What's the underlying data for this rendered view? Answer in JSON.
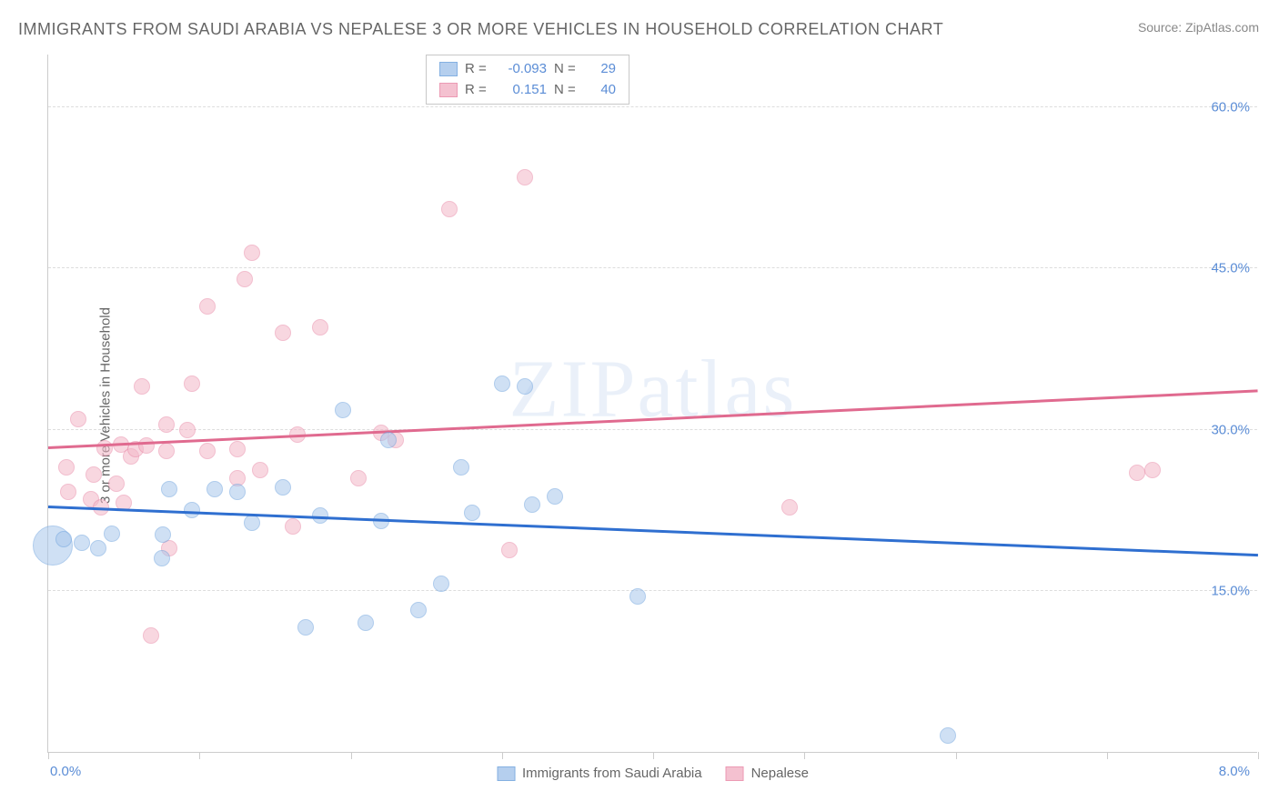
{
  "title": "IMMIGRANTS FROM SAUDI ARABIA VS NEPALESE 3 OR MORE VEHICLES IN HOUSEHOLD CORRELATION CHART",
  "source": "Source: ZipAtlas.com",
  "watermark": "ZIPatlas",
  "ylabel": "3 or more Vehicles in Household",
  "chart": {
    "type": "scatter",
    "xlim": [
      0.0,
      8.0
    ],
    "ylim": [
      0.0,
      65.0
    ],
    "yticks": [
      15.0,
      30.0,
      45.0,
      60.0
    ],
    "ytick_labels": [
      "15.0%",
      "30.0%",
      "45.0%",
      "60.0%"
    ],
    "xticks_displayed": [
      0.0,
      8.0
    ],
    "xtick_labels": [
      "0.0%",
      "8.0%"
    ],
    "xtick_marks": [
      0.0,
      1.0,
      2.0,
      3.0,
      4.0,
      5.0,
      6.0,
      7.0,
      8.0
    ],
    "background_color": "#ffffff",
    "grid_color": "#dddddd",
    "axis_color": "#cccccc",
    "tick_label_color": "#5b8dd6",
    "title_color": "#666666",
    "title_fontsize": 18,
    "label_fontsize": 15
  },
  "series": {
    "saudi": {
      "label": "Immigrants from Saudi Arabia",
      "fill_color": "#a9c7ec",
      "stroke_color": "#6fa3de",
      "line_color": "#2f6fd0",
      "fill_opacity": 0.55,
      "R": "-0.093",
      "N": "29",
      "marker_radius": 9,
      "trend": {
        "x1": 0.0,
        "y1": 22.7,
        "x2": 8.0,
        "y2": 18.2
      },
      "points": [
        {
          "x": 0.03,
          "y": 19.2,
          "r": 22
        },
        {
          "x": 0.1,
          "y": 19.8,
          "r": 9
        },
        {
          "x": 0.22,
          "y": 19.5,
          "r": 9
        },
        {
          "x": 0.33,
          "y": 19.0,
          "r": 9
        },
        {
          "x": 0.42,
          "y": 20.3,
          "r": 9
        },
        {
          "x": 0.75,
          "y": 18.0,
          "r": 9
        },
        {
          "x": 0.76,
          "y": 20.2,
          "r": 9
        },
        {
          "x": 0.8,
          "y": 24.5,
          "r": 9
        },
        {
          "x": 0.95,
          "y": 22.5,
          "r": 9
        },
        {
          "x": 1.1,
          "y": 24.5,
          "r": 9
        },
        {
          "x": 1.25,
          "y": 24.2,
          "r": 9
        },
        {
          "x": 1.35,
          "y": 21.3,
          "r": 9
        },
        {
          "x": 1.55,
          "y": 24.6,
          "r": 9
        },
        {
          "x": 1.7,
          "y": 11.6,
          "r": 9
        },
        {
          "x": 1.8,
          "y": 22.0,
          "r": 9
        },
        {
          "x": 1.95,
          "y": 31.8,
          "r": 9
        },
        {
          "x": 2.1,
          "y": 12.0,
          "r": 9
        },
        {
          "x": 2.2,
          "y": 21.5,
          "r": 9
        },
        {
          "x": 2.25,
          "y": 29.0,
          "r": 9
        },
        {
          "x": 2.45,
          "y": 13.2,
          "r": 9
        },
        {
          "x": 2.6,
          "y": 15.7,
          "r": 9
        },
        {
          "x": 2.73,
          "y": 26.5,
          "r": 9
        },
        {
          "x": 2.8,
          "y": 22.3,
          "r": 9
        },
        {
          "x": 3.0,
          "y": 34.3,
          "r": 9
        },
        {
          "x": 3.2,
          "y": 23.0,
          "r": 9
        },
        {
          "x": 3.35,
          "y": 23.8,
          "r": 9
        },
        {
          "x": 3.9,
          "y": 14.5,
          "r": 9
        },
        {
          "x": 5.95,
          "y": 1.5,
          "r": 9
        },
        {
          "x": 3.15,
          "y": 34.0,
          "r": 9
        }
      ]
    },
    "nepalese": {
      "label": "Nepalese",
      "fill_color": "#f3b7c8",
      "stroke_color": "#e989a7",
      "line_color": "#e06a8f",
      "fill_opacity": 0.55,
      "R": "0.151",
      "N": "40",
      "marker_radius": 9,
      "trend": {
        "x1": 0.0,
        "y1": 28.2,
        "x2": 8.0,
        "y2": 33.5
      },
      "points": [
        {
          "x": 0.12,
          "y": 26.5,
          "r": 9
        },
        {
          "x": 0.13,
          "y": 24.2,
          "r": 9
        },
        {
          "x": 0.2,
          "y": 31.0,
          "r": 9
        },
        {
          "x": 0.28,
          "y": 23.5,
          "r": 9
        },
        {
          "x": 0.3,
          "y": 25.8,
          "r": 9
        },
        {
          "x": 0.35,
          "y": 22.8,
          "r": 9
        },
        {
          "x": 0.37,
          "y": 28.3,
          "r": 9
        },
        {
          "x": 0.45,
          "y": 25.0,
          "r": 9
        },
        {
          "x": 0.48,
          "y": 28.6,
          "r": 9
        },
        {
          "x": 0.5,
          "y": 23.2,
          "r": 9
        },
        {
          "x": 0.55,
          "y": 27.5,
          "r": 9
        },
        {
          "x": 0.58,
          "y": 28.2,
          "r": 9
        },
        {
          "x": 0.62,
          "y": 34.0,
          "r": 9
        },
        {
          "x": 0.65,
          "y": 28.5,
          "r": 9
        },
        {
          "x": 0.68,
          "y": 10.8,
          "r": 9
        },
        {
          "x": 0.78,
          "y": 28.0,
          "r": 9
        },
        {
          "x": 0.78,
          "y": 30.5,
          "r": 9
        },
        {
          "x": 0.8,
          "y": 19.0,
          "r": 9
        },
        {
          "x": 0.92,
          "y": 30.0,
          "r": 9
        },
        {
          "x": 0.95,
          "y": 34.3,
          "r": 9
        },
        {
          "x": 1.05,
          "y": 28.0,
          "r": 9
        },
        {
          "x": 1.05,
          "y": 41.5,
          "r": 9
        },
        {
          "x": 1.25,
          "y": 25.5,
          "r": 9
        },
        {
          "x": 1.25,
          "y": 28.2,
          "r": 9
        },
        {
          "x": 1.3,
          "y": 44.0,
          "r": 9
        },
        {
          "x": 1.35,
          "y": 46.5,
          "r": 9
        },
        {
          "x": 1.4,
          "y": 26.2,
          "r": 9
        },
        {
          "x": 1.55,
          "y": 39.0,
          "r": 9
        },
        {
          "x": 1.65,
          "y": 29.5,
          "r": 9
        },
        {
          "x": 1.62,
          "y": 21.0,
          "r": 9
        },
        {
          "x": 1.8,
          "y": 39.5,
          "r": 9
        },
        {
          "x": 2.05,
          "y": 25.5,
          "r": 9
        },
        {
          "x": 2.2,
          "y": 29.7,
          "r": 9
        },
        {
          "x": 2.3,
          "y": 29.0,
          "r": 9
        },
        {
          "x": 2.65,
          "y": 50.5,
          "r": 9
        },
        {
          "x": 3.05,
          "y": 18.8,
          "r": 9
        },
        {
          "x": 3.15,
          "y": 53.5,
          "r": 9
        },
        {
          "x": 4.9,
          "y": 22.8,
          "r": 9
        },
        {
          "x": 7.2,
          "y": 26.0,
          "r": 9
        },
        {
          "x": 7.3,
          "y": 26.2,
          "r": 9
        }
      ]
    }
  },
  "legend": {
    "r_label": "R =",
    "n_label": "N ="
  }
}
